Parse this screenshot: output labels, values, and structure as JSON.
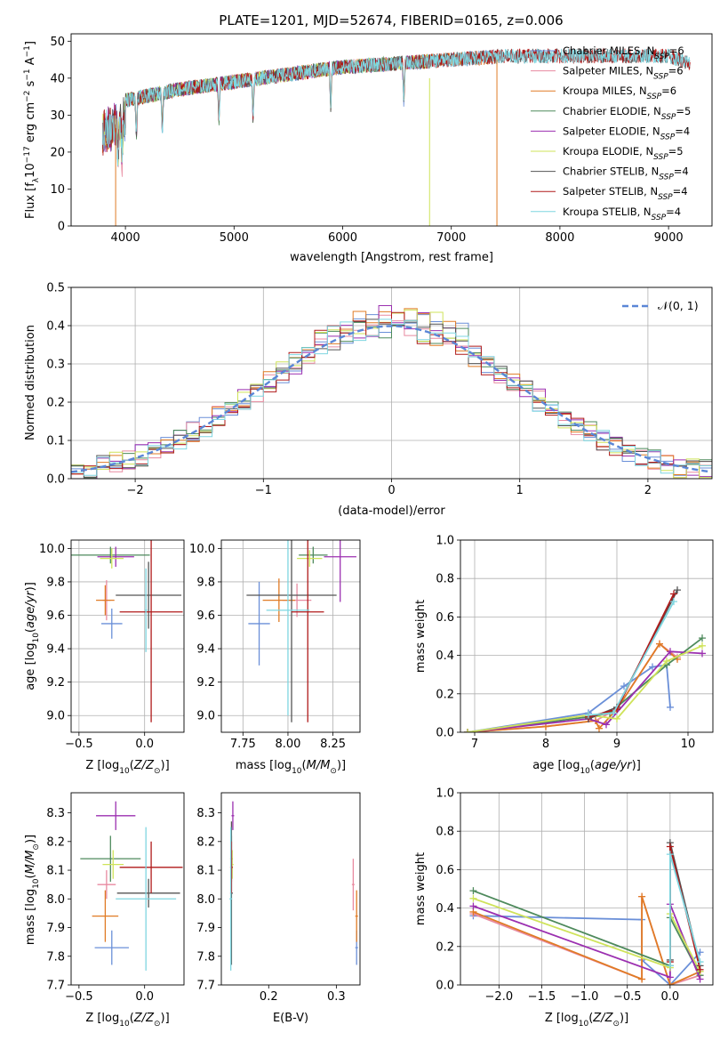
{
  "figure_title": "PLATE=1201, MJD=52674, FIBERID=0165, z=0.006",
  "colors": {
    "Chabrier MILES": "#6a8fd8",
    "Salpeter MILES": "#e88aa0",
    "Kroupa MILES": "#e07b25",
    "Chabrier ELODIE": "#4e8a5c",
    "Salpeter ELODIE": "#9b2fb0",
    "Kroupa ELODIE": "#cfe35a",
    "Chabrier STELIB": "#555555",
    "Salpeter STELIB": "#b01a1a",
    "Kroupa STELIB": "#7fd6e0"
  },
  "chart_data": [
    {
      "id": "spectrum",
      "type": "line",
      "title": "PLATE=1201, MJD=52674, FIBERID=0165, z=0.006",
      "xlabel": "wavelength [Angstrom, rest frame]",
      "ylabel": "Flux [f_λ 10^-17 erg cm^-2 s^-1 A^-1]",
      "xlim": [
        3500,
        9400
      ],
      "ylim": [
        0,
        52
      ],
      "xticks": [
        4000,
        5000,
        6000,
        7000,
        8000,
        9000
      ],
      "yticks": [
        0,
        10,
        20,
        30,
        40,
        50
      ],
      "grid": false,
      "legend_position": "top-right",
      "series": [
        {
          "name": "Chabrier MILES",
          "nssp": "6",
          "x": [
            3790,
            4000,
            4500,
            5000,
            5500,
            6000,
            6500,
            7000,
            7400
          ]
        },
        {
          "name": "Salpeter MILES",
          "nssp": "6",
          "x": [
            3790,
            4000,
            4500,
            5000,
            5500,
            6000,
            6500,
            7000,
            7400
          ]
        },
        {
          "name": "Kroupa MILES",
          "nssp": "6",
          "x": [
            3790,
            4000,
            4500,
            5000,
            5500,
            6000,
            6500,
            7000,
            7400
          ]
        },
        {
          "name": "Chabrier ELODIE",
          "nssp": "5",
          "x": [
            3790,
            4000,
            4500,
            5000,
            5500,
            6000,
            6500,
            6800
          ]
        },
        {
          "name": "Salpeter ELODIE",
          "nssp": "4",
          "x": [
            3790,
            4000,
            4500,
            5000,
            5500,
            6000,
            6500,
            6800
          ]
        },
        {
          "name": "Kroupa ELODIE",
          "nssp": "5",
          "x": [
            3790,
            4000,
            4500,
            5000,
            5500,
            6000,
            6500,
            6800
          ]
        },
        {
          "name": "Chabrier STELIB",
          "nssp": "4",
          "x": [
            3790,
            4000,
            4500,
            5000,
            5500,
            6000,
            6500,
            7000,
            7500,
            8000,
            8500,
            9000,
            9200
          ]
        },
        {
          "name": "Salpeter STELIB",
          "nssp": "4",
          "x": [
            3790,
            4000,
            4500,
            5000,
            5500,
            6000,
            6500,
            7000,
            7500,
            8000,
            8500,
            9000,
            9200
          ]
        },
        {
          "name": "Kroupa STELIB",
          "nssp": "4",
          "x": [
            3790,
            4000,
            4500,
            5000,
            5500,
            6000,
            6500,
            7000,
            7500,
            8000,
            8500,
            9000,
            9200
          ]
        }
      ],
      "continuum": {
        "x": [
          3790,
          4000,
          4500,
          5000,
          5500,
          6000,
          6500,
          7000,
          7500,
          8000,
          8500,
          9000,
          9200
        ],
        "y": [
          30,
          34,
          37,
          39,
          41,
          43,
          44,
          45,
          46,
          46,
          46,
          46,
          44
        ]
      }
    },
    {
      "id": "residuals",
      "type": "line",
      "xlabel": "(data-model)/error",
      "ylabel": "Normed distribution",
      "xlim": [
        -2.5,
        2.5
      ],
      "ylim": [
        0,
        0.5
      ],
      "xticks": [
        -2,
        -1,
        0,
        1,
        2
      ],
      "xtick_labels": [
        "−2",
        "−1",
        "0",
        "1",
        "2"
      ],
      "yticks": [
        0.0,
        0.1,
        0.2,
        0.3,
        0.4,
        0.5
      ],
      "ytick_labels": [
        "0.0",
        "0.1",
        "0.2",
        "0.3",
        "0.4",
        "0.5"
      ],
      "grid": true,
      "legend": "𝒩(0, 1)",
      "legend_position": "top-right",
      "normal_curve": {
        "mean": 0,
        "sigma": 1
      }
    },
    {
      "id": "age-vs-Z",
      "type": "scatter",
      "xlabel": "Z [log10(Z/Z⊙)]",
      "ylabel": "age [log10(age/yr)]",
      "xlim": [
        -0.56,
        0.3
      ],
      "ylim": [
        8.9,
        10.05
      ],
      "xticks": [
        -0.5,
        0.0
      ],
      "xtick_labels": [
        "−0.5",
        "0.0"
      ],
      "yticks": [
        9.0,
        9.2,
        9.4,
        9.6,
        9.8,
        10.0
      ],
      "ytick_labels": [
        "9.0",
        "9.2",
        "9.4",
        "9.6",
        "9.8",
        "10.0"
      ],
      "grid": true,
      "points": [
        {
          "series": "Chabrier MILES",
          "x": -0.25,
          "y": 9.55,
          "xerr": 0.08,
          "yerr": 0.09
        },
        {
          "series": "Salpeter MILES",
          "x": -0.29,
          "y": 9.69,
          "xerr": 0.03,
          "yerr": 0.12
        },
        {
          "series": "Kroupa MILES",
          "x": -0.3,
          "y": 9.69,
          "xerr": 0.07,
          "yerr": 0.09
        },
        {
          "series": "Chabrier ELODIE",
          "x": -0.26,
          "y": 9.96,
          "xerr": 0.3,
          "yerr": 0.05
        },
        {
          "series": "Salpeter ELODIE",
          "x": -0.22,
          "y": 9.95,
          "xerr": 0.14,
          "yerr": 0.06
        },
        {
          "series": "Kroupa ELODIE",
          "x": -0.25,
          "y": 9.94,
          "xerr": 0.09,
          "yerr": 0.06
        },
        {
          "series": "Chabrier STELIB",
          "x": 0.03,
          "y": 9.72,
          "xerr": 0.25,
          "yerr": 0.2
        },
        {
          "series": "Salpeter STELIB",
          "x": 0.05,
          "y": 9.62,
          "xerr": 0.24,
          "yerr": 0.66
        },
        {
          "series": "Kroupa STELIB",
          "x": 0.01,
          "y": 9.63,
          "xerr": 0.01,
          "yerr": 0.25
        }
      ]
    },
    {
      "id": "age-vs-mass",
      "type": "scatter",
      "xlabel": "mass [log10(M/M⊙)]",
      "xlim": [
        7.63,
        8.4
      ],
      "ylim": [
        8.9,
        10.05
      ],
      "xticks": [
        7.75,
        8.0,
        8.25
      ],
      "xtick_labels": [
        "7.75",
        "8.00",
        "8.25"
      ],
      "yticks": [
        9.0,
        9.2,
        9.4,
        9.6,
        9.8,
        10.0
      ],
      "ytick_labels": [
        "9.0",
        "9.2",
        "9.4",
        "9.6",
        "9.8",
        "10.0"
      ],
      "grid": true,
      "points": [
        {
          "series": "Chabrier MILES",
          "x": 7.84,
          "y": 9.55,
          "xerr": 0.06,
          "yerr": 0.25
        },
        {
          "series": "Salpeter MILES",
          "x": 8.05,
          "y": 9.69,
          "xerr": 0.08,
          "yerr": 0.1
        },
        {
          "series": "Kroupa MILES",
          "x": 7.95,
          "y": 9.69,
          "xerr": 0.09,
          "yerr": 0.13
        },
        {
          "series": "Chabrier ELODIE",
          "x": 8.14,
          "y": 9.96,
          "xerr": 0.08,
          "yerr": 0.05
        },
        {
          "series": "Salpeter ELODIE",
          "x": 8.29,
          "y": 9.95,
          "xerr": 0.09,
          "yerr": 0.27
        },
        {
          "series": "Kroupa ELODIE",
          "x": 8.12,
          "y": 9.94,
          "xerr": 0.07,
          "yerr": 0.05
        },
        {
          "series": "Chabrier STELIB",
          "x": 8.02,
          "y": 9.72,
          "xerr": 0.25,
          "yerr": 0.76
        },
        {
          "series": "Salpeter STELIB",
          "x": 8.11,
          "y": 9.62,
          "xerr": 0.09,
          "yerr": 0.66
        },
        {
          "series": "Kroupa STELIB",
          "x": 8.0,
          "y": 9.63,
          "xerr": 0.12,
          "yerr": 0.63
        }
      ]
    },
    {
      "id": "mass-weight-vs-age",
      "type": "line",
      "xlabel": "age [log10(age/yr)]",
      "ylabel": "mass weight",
      "xlim": [
        6.8,
        10.35
      ],
      "ylim": [
        0,
        1.0
      ],
      "xticks": [
        7,
        8,
        9,
        10
      ],
      "yticks": [
        0.0,
        0.2,
        0.4,
        0.6,
        0.8,
        1.0
      ],
      "ytick_labels": [
        "0.0",
        "0.2",
        "0.4",
        "0.6",
        "0.8",
        "1.0"
      ],
      "grid": true,
      "series": [
        {
          "name": "Chabrier MILES",
          "x": [
            6.9,
            8.6,
            9.1,
            9.5,
            9.7,
            9.75
          ],
          "y": [
            0.0,
            0.1,
            0.24,
            0.34,
            0.35,
            0.13
          ]
        },
        {
          "name": "Salpeter MILES",
          "x": [
            6.9,
            8.0,
            8.7,
            9.0,
            9.6,
            9.85
          ],
          "y": [
            0.0,
            0.03,
            0.06,
            0.12,
            0.46,
            0.39
          ]
        },
        {
          "name": "Kroupa MILES",
          "x": [
            6.9,
            8.0,
            8.7,
            8.75,
            9.0,
            9.6,
            9.85
          ],
          "y": [
            0.0,
            0.03,
            0.06,
            0.02,
            0.12,
            0.46,
            0.38
          ]
        },
        {
          "name": "Chabrier ELODIE",
          "x": [
            6.9,
            8.6,
            8.9,
            9.7,
            10.2
          ],
          "y": [
            0.0,
            0.08,
            0.1,
            0.35,
            0.49
          ]
        },
        {
          "name": "Salpeter ELODIE",
          "x": [
            6.9,
            8.6,
            8.85,
            9.75,
            10.2
          ],
          "y": [
            0.0,
            0.07,
            0.04,
            0.42,
            0.41
          ]
        },
        {
          "name": "Kroupa ELODIE",
          "x": [
            6.9,
            8.6,
            9.0,
            9.7,
            10.2
          ],
          "y": [
            0.0,
            0.09,
            0.07,
            0.37,
            0.45
          ]
        },
        {
          "name": "Chabrier STELIB",
          "x": [
            8.6,
            9.0,
            9.85
          ],
          "y": [
            0.07,
            0.13,
            0.74
          ]
        },
        {
          "name": "Salpeter STELIB",
          "x": [
            8.6,
            9.0,
            9.8
          ],
          "y": [
            0.08,
            0.12,
            0.72
          ]
        },
        {
          "name": "Kroupa STELIB",
          "x": [
            8.6,
            8.95,
            9.8
          ],
          "y": [
            0.09,
            0.1,
            0.68
          ]
        }
      ]
    },
    {
      "id": "mass-vs-Z",
      "type": "scatter",
      "xlabel": "Z [log10(Z/Z⊙)]",
      "ylabel": "mass [log10(M/M⊙)]",
      "xlim": [
        -0.56,
        0.3
      ],
      "ylim": [
        7.7,
        8.37
      ],
      "xticks": [
        -0.5,
        0.0
      ],
      "xtick_labels": [
        "−0.5",
        "0.0"
      ],
      "yticks": [
        7.7,
        7.8,
        7.9,
        8.0,
        8.1,
        8.2,
        8.3
      ],
      "ytick_labels": [
        "7.7",
        "7.8",
        "7.9",
        "8.0",
        "8.1",
        "8.2",
        "8.3"
      ],
      "grid": false,
      "points": [
        {
          "series": "Chabrier MILES",
          "x": -0.25,
          "y": 7.83,
          "xerr": 0.13,
          "yerr": 0.06
        },
        {
          "series": "Salpeter MILES",
          "x": -0.29,
          "y": 8.05,
          "xerr": 0.07,
          "yerr": 0.05
        },
        {
          "series": "Kroupa MILES",
          "x": -0.3,
          "y": 7.94,
          "xerr": 0.1,
          "yerr": 0.09
        },
        {
          "series": "Chabrier ELODIE",
          "x": -0.26,
          "y": 8.14,
          "xerr": 0.23,
          "yerr": 0.08
        },
        {
          "series": "Salpeter ELODIE",
          "x": -0.22,
          "y": 8.29,
          "xerr": 0.15,
          "yerr": 0.05
        },
        {
          "series": "Kroupa ELODIE",
          "x": -0.24,
          "y": 8.12,
          "xerr": 0.08,
          "yerr": 0.05
        },
        {
          "series": "Chabrier STELIB",
          "x": 0.03,
          "y": 8.02,
          "xerr": 0.24,
          "yerr": 0.05
        },
        {
          "series": "Salpeter STELIB",
          "x": 0.05,
          "y": 8.11,
          "xerr": 0.24,
          "yerr": 0.09
        },
        {
          "series": "Kroupa STELIB",
          "x": 0.01,
          "y": 8.0,
          "xerr": 0.23,
          "yerr": 0.25
        }
      ]
    },
    {
      "id": "mass-vs-ebv",
      "type": "scatter",
      "xlabel": "E(B-V)",
      "xlim": [
        0.13,
        0.335
      ],
      "ylim": [
        7.7,
        8.37
      ],
      "xticks": [
        0.2,
        0.3
      ],
      "xtick_labels": [
        "0.2",
        "0.3"
      ],
      "yticks": [
        7.7,
        7.8,
        7.9,
        8.0,
        8.1,
        8.2,
        8.3
      ],
      "ytick_labels": [
        "7.7",
        "7.8",
        "7.9",
        "8.0",
        "8.1",
        "8.2",
        "8.3"
      ],
      "grid": false,
      "points": [
        {
          "series": "Chabrier MILES",
          "x": 0.33,
          "y": 7.83,
          "xerr": 0.002,
          "yerr": 0.06
        },
        {
          "series": "Salpeter MILES",
          "x": 0.325,
          "y": 8.05,
          "xerr": 0.002,
          "yerr": 0.09
        },
        {
          "series": "Kroupa MILES",
          "x": 0.33,
          "y": 7.94,
          "xerr": 0.002,
          "yerr": 0.09
        },
        {
          "series": "Chabrier ELODIE",
          "x": 0.145,
          "y": 8.14,
          "xerr": 0.002,
          "yerr": 0.08
        },
        {
          "series": "Salpeter ELODIE",
          "x": 0.147,
          "y": 8.29,
          "xerr": 0.002,
          "yerr": 0.05
        },
        {
          "series": "Kroupa ELODIE",
          "x": 0.146,
          "y": 8.12,
          "xerr": 0.002,
          "yerr": 0.05
        },
        {
          "series": "Chabrier STELIB",
          "x": 0.145,
          "y": 8.02,
          "xerr": 0.002,
          "yerr": 0.25
        },
        {
          "series": "Salpeter STELIB",
          "x": 0.145,
          "y": 8.11,
          "xerr": 0.002,
          "yerr": 0.09
        },
        {
          "series": "Kroupa STELIB",
          "x": 0.144,
          "y": 8.0,
          "xerr": 0.002,
          "yerr": 0.25
        }
      ]
    },
    {
      "id": "mass-weight-vs-Z",
      "type": "line",
      "xlabel": "Z [log10(Z/Z⊙)]",
      "ylabel": "mass weight",
      "xlim": [
        -2.45,
        0.5
      ],
      "ylim": [
        0,
        1.0
      ],
      "xticks": [
        -2.0,
        -1.5,
        -1.0,
        -0.5,
        0.0
      ],
      "xtick_labels": [
        "−2.0",
        "−1.5",
        "−1.0",
        "−0.5",
        "0.0"
      ],
      "yticks": [
        0.0,
        0.2,
        0.4,
        0.6,
        0.8,
        1.0
      ],
      "ytick_labels": [
        "0.0",
        "0.2",
        "0.4",
        "0.6",
        "0.8",
        "1.0"
      ],
      "grid": true,
      "series": [
        {
          "name": "Chabrier MILES",
          "x": [
            -2.3,
            -0.33,
            -0.33,
            0.0,
            0.35
          ],
          "y": [
            0.36,
            0.34,
            0.13,
            0.0,
            0.17
          ]
        },
        {
          "name": "Salpeter MILES",
          "x": [
            -2.3,
            -0.33,
            -0.33,
            0.0,
            0.35
          ],
          "y": [
            0.37,
            0.03,
            0.46,
            0.0,
            0.05
          ]
        },
        {
          "name": "Kroupa MILES",
          "x": [
            -2.3,
            -0.33,
            -0.33,
            0.0,
            0.35
          ],
          "y": [
            0.38,
            0.03,
            0.46,
            0.0,
            0.07
          ]
        },
        {
          "name": "Chabrier ELODIE",
          "x": [
            -2.3,
            0.0,
            0.0,
            0.35
          ],
          "y": [
            0.49,
            0.1,
            0.35,
            0.05
          ]
        },
        {
          "name": "Salpeter ELODIE",
          "x": [
            -2.3,
            0.0,
            0.0,
            0.35
          ],
          "y": [
            0.41,
            0.04,
            0.42,
            0.03
          ]
        },
        {
          "name": "Kroupa ELODIE",
          "x": [
            -2.3,
            0.0,
            0.0,
            0.35
          ],
          "y": [
            0.45,
            0.09,
            0.37,
            0.07
          ]
        },
        {
          "name": "Chabrier STELIB",
          "x": [
            0.0,
            0.0,
            0.35
          ],
          "y": [
            0.13,
            0.74,
            0.1
          ]
        },
        {
          "name": "Salpeter STELIB",
          "x": [
            0.0,
            0.0,
            0.35
          ],
          "y": [
            0.12,
            0.72,
            0.08
          ]
        },
        {
          "name": "Kroupa STELIB",
          "x": [
            0.0,
            0.0,
            0.35
          ],
          "y": [
            0.1,
            0.68,
            0.12
          ]
        }
      ]
    }
  ]
}
